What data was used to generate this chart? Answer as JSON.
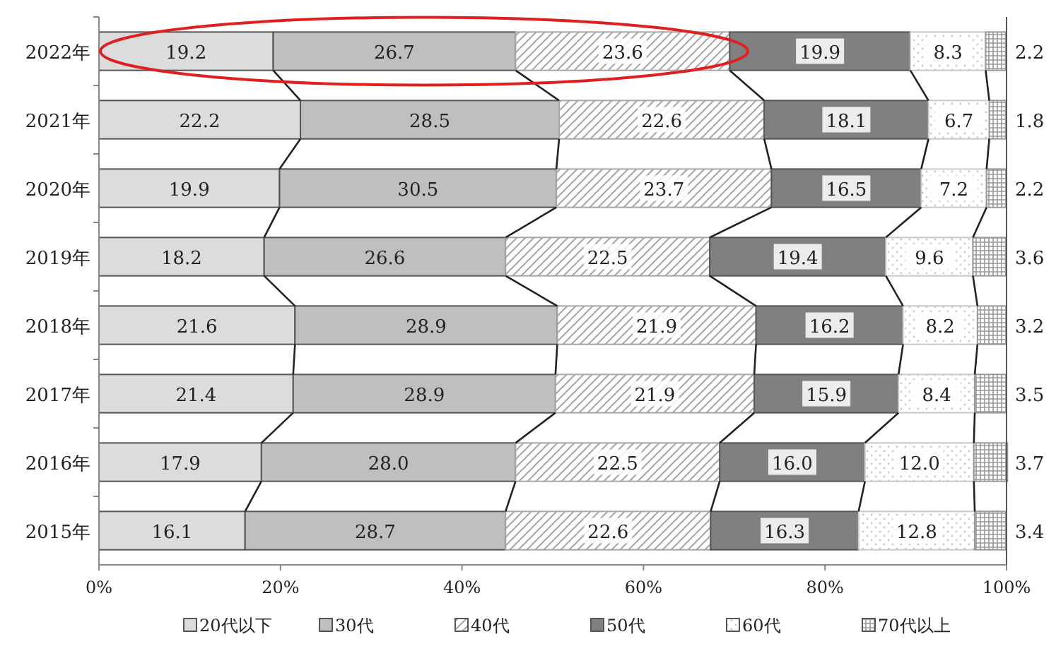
{
  "chart_data": {
    "type": "bar",
    "orientation": "horizontal",
    "stacked": true,
    "grid": false,
    "legend": "bottom",
    "categories": [
      "2022年",
      "2021年",
      "2020年",
      "2019年",
      "2018年",
      "2017年",
      "2016年",
      "2015年"
    ],
    "xlim": [
      0,
      100
    ],
    "xticks": [
      {
        "value": 0,
        "label": "0%"
      },
      {
        "value": 20,
        "label": "20%"
      },
      {
        "value": 40,
        "label": "40%"
      },
      {
        "value": 60,
        "label": "60%"
      },
      {
        "value": 80,
        "label": "80%"
      },
      {
        "value": 100,
        "label": "100%"
      }
    ],
    "series": [
      {
        "name": "20代以下",
        "color": "#dcdcdc",
        "values": [
          19.2,
          22.2,
          19.9,
          18.2,
          21.6,
          21.4,
          17.9,
          16.1
        ],
        "value_labels": [
          "19.2",
          "22.2",
          "19.9",
          "18.2",
          "21.6",
          "21.4",
          "17.9",
          "16.1"
        ]
      },
      {
        "name": "30代",
        "color": "#bfbfbf",
        "values": [
          26.7,
          28.5,
          30.5,
          26.6,
          28.9,
          28.9,
          28.0,
          28.7
        ],
        "value_labels": [
          "26.7",
          "28.5",
          "30.5",
          "26.6",
          "28.9",
          "28.9",
          "28.0",
          "28.7"
        ]
      },
      {
        "name": "40代",
        "color": "#a6a6a6",
        "values": [
          23.6,
          22.6,
          23.7,
          22.5,
          21.9,
          21.9,
          22.5,
          22.6
        ],
        "value_labels": [
          "23.6",
          "22.6",
          "23.7",
          "22.5",
          "21.9",
          "21.9",
          "22.5",
          "22.6"
        ]
      },
      {
        "name": "50代",
        "color": "#808080",
        "values": [
          19.9,
          18.1,
          16.5,
          19.4,
          16.2,
          15.9,
          16.0,
          16.3
        ],
        "value_labels": [
          "19.9",
          "18.1",
          "16.5",
          "19.4",
          "16.2",
          "15.9",
          "16.0",
          "16.3"
        ]
      },
      {
        "name": "60代",
        "color": "#c8c8c8",
        "values": [
          8.3,
          6.7,
          7.2,
          9.6,
          8.2,
          8.4,
          12.0,
          12.8
        ],
        "value_labels": [
          "8.3",
          "6.7",
          "7.2",
          "9.6",
          "8.2",
          "8.4",
          "12.0",
          "12.8"
        ]
      },
      {
        "name": "70代以上",
        "color": "#999999",
        "values": [
          2.2,
          1.8,
          2.2,
          3.6,
          3.2,
          3.5,
          3.7,
          3.4
        ],
        "value_labels": [
          "2.2",
          "1.8",
          "2.2",
          "3.6",
          "3.2",
          "3.5",
          "3.7",
          "3.4"
        ]
      }
    ]
  }
}
